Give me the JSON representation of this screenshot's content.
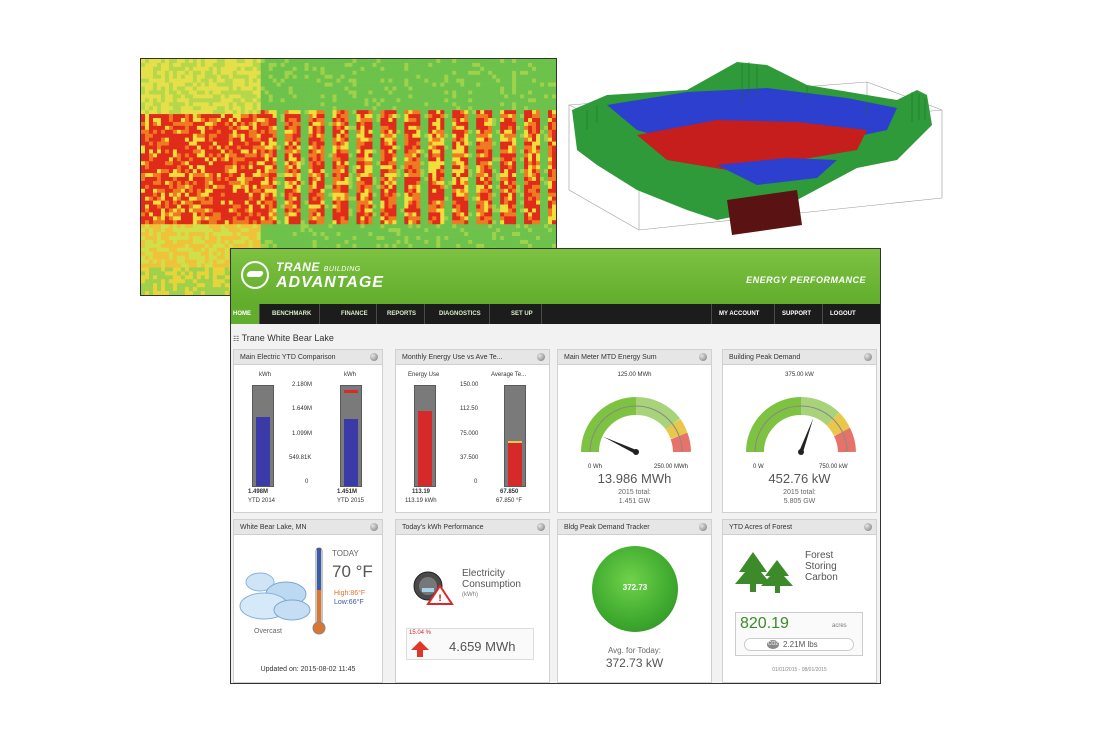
{
  "header": {
    "brand_main": "TRANE",
    "brand_sub": "BUILDING",
    "brand_product": "ADVANTAGE",
    "section_title": "ENERGY PERFORMANCE"
  },
  "nav": {
    "items": [
      "HOME",
      "BENCHMARK",
      "FINANCE",
      "REPORTS",
      "DIAGNOSTICS",
      "SET UP"
    ],
    "right_items": [
      "MY ACCOUNT",
      "SUPPORT",
      "LOGOUT"
    ]
  },
  "site_name": "Trane White Bear Lake",
  "tiles": {
    "ytd": {
      "title": "Main Electric YTD Comparison",
      "left_unit": "kWh",
      "right_unit": "kWh",
      "scale": [
        "2.180M",
        "1.649M",
        "1.099M",
        "549.81K",
        "0"
      ],
      "left_value": "1.498M",
      "left_label": "YTD 2014",
      "right_value": "1.451M",
      "right_label": "YTD 2015",
      "left_fill_pct": 69,
      "right_fill_pct": 67
    },
    "monthly": {
      "title": "Monthly Energy Use vs Ave Te...",
      "left_label": "Energy Use",
      "right_label": "Average Te...",
      "scale": [
        "150.00",
        "112.50",
        "75.000",
        "37.500",
        "0"
      ],
      "left_value": "113.19",
      "left_sub": "113.19 kWh",
      "right_value": "67.850",
      "right_sub": "67.850 °F",
      "left_fill_pct": 75,
      "right_fill_pct": 45
    },
    "mtd": {
      "title": "Main Meter MTD Energy Sum",
      "gauge_max_label": "125.00 MWh",
      "gauge_min": "0 Wh",
      "gauge_end": "250.00 MWh",
      "value": "13.986 MWh",
      "sub1": "2015 total:",
      "sub2": "1.451 GW",
      "needle_deg": -65
    },
    "peak": {
      "title": "Building Peak Demand",
      "gauge_max_label": "375.00 kW",
      "gauge_min": "0 W",
      "gauge_end": "750.00 kW",
      "value": "452.76 kW",
      "sub1": "2015 total:",
      "sub2": "5.805 GW",
      "needle_deg": 20
    },
    "weather": {
      "title": "White Bear Lake, MN",
      "today": "TODAY",
      "temp": "70 °F",
      "high_label": "High:",
      "high": "86°F",
      "low_label": "Low:",
      "low": "66°F",
      "condition": "Overcast",
      "updated": "Updated on: 2015-08-02 11:45"
    },
    "kwh": {
      "title": "Today's kWh Performance",
      "line1": "Electricity",
      "line2": "Consumption",
      "unit": "(kWh)",
      "pct": "15.04 %",
      "value": "4.659 MWh"
    },
    "tracker": {
      "title": "Bldg Peak Demand Tracker",
      "circle_value": "372.73",
      "avg_label": "Avg. for Today:",
      "avg_value": "372.73 kW"
    },
    "forest": {
      "title": "YTD Acres of Forest",
      "line1": "Forest",
      "line2": "Storing",
      "line3": "Carbon",
      "value": "820.19",
      "unit": "acres",
      "co2_badge": "CO2",
      "lbs": "2.21M lbs",
      "dates": "01/01/2015 - 08/01/2015"
    }
  },
  "colors": {
    "brand_green": "#62ad2c",
    "nav_dark": "#1c1c1c",
    "bar_blue": "#3b3ba8",
    "bar_red": "#d62a2a",
    "gauge_green": "#7ec242",
    "gauge_yellow": "#e8c84a",
    "gauge_red": "#e5736a"
  }
}
